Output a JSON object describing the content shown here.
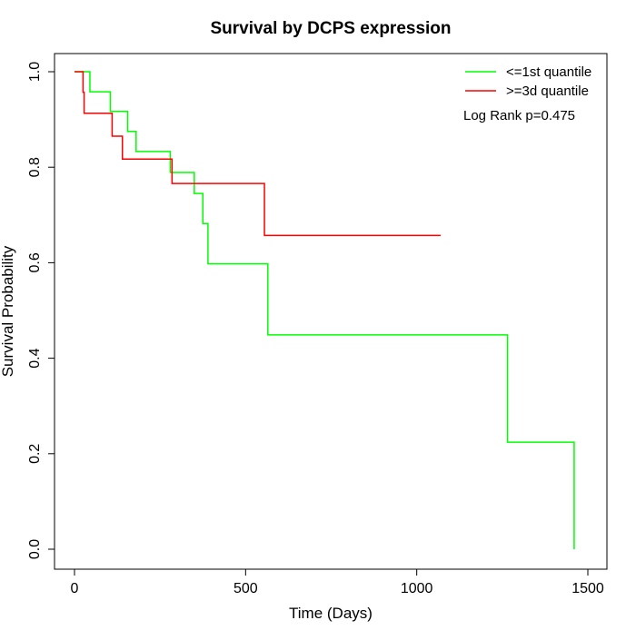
{
  "chart_data": {
    "type": "line",
    "title": "Survival by DCPS expression",
    "xlabel": "Time (Days)",
    "ylabel": "Survival Probability",
    "xlim": [
      0,
      1500
    ],
    "ylim": [
      0,
      1
    ],
    "x_ticks": [
      0,
      500,
      1000,
      1500
    ],
    "y_ticks": [
      0.0,
      0.2,
      0.4,
      0.6,
      0.8,
      1.0
    ],
    "x_tick_labels": [
      "0",
      "500",
      "1000",
      "1500"
    ],
    "y_tick_labels": [
      "0.0",
      "0.2",
      "0.4",
      "0.6",
      "0.8",
      "1.0"
    ],
    "grid": false,
    "legend_position": "top-right",
    "annotation": "Log Rank p=0.475",
    "series": [
      {
        "name": "<=1st quantile",
        "color": "#00ff00",
        "step": true,
        "x": [
          0,
          45,
          105,
          155,
          180,
          280,
          350,
          375,
          390,
          565,
          1265,
          1460
        ],
        "y": [
          1.0,
          0.958,
          0.917,
          0.875,
          0.833,
          0.789,
          0.745,
          0.682,
          0.598,
          0.449,
          0.224,
          0.0
        ]
      },
      {
        "name": ">=3d quantile",
        "color": "#ff0000",
        "step": true,
        "x": [
          0,
          25,
          28,
          110,
          140,
          285,
          555,
          1070
        ],
        "y": [
          1.0,
          0.957,
          0.913,
          0.865,
          0.817,
          0.766,
          0.657,
          0.657
        ]
      }
    ]
  }
}
